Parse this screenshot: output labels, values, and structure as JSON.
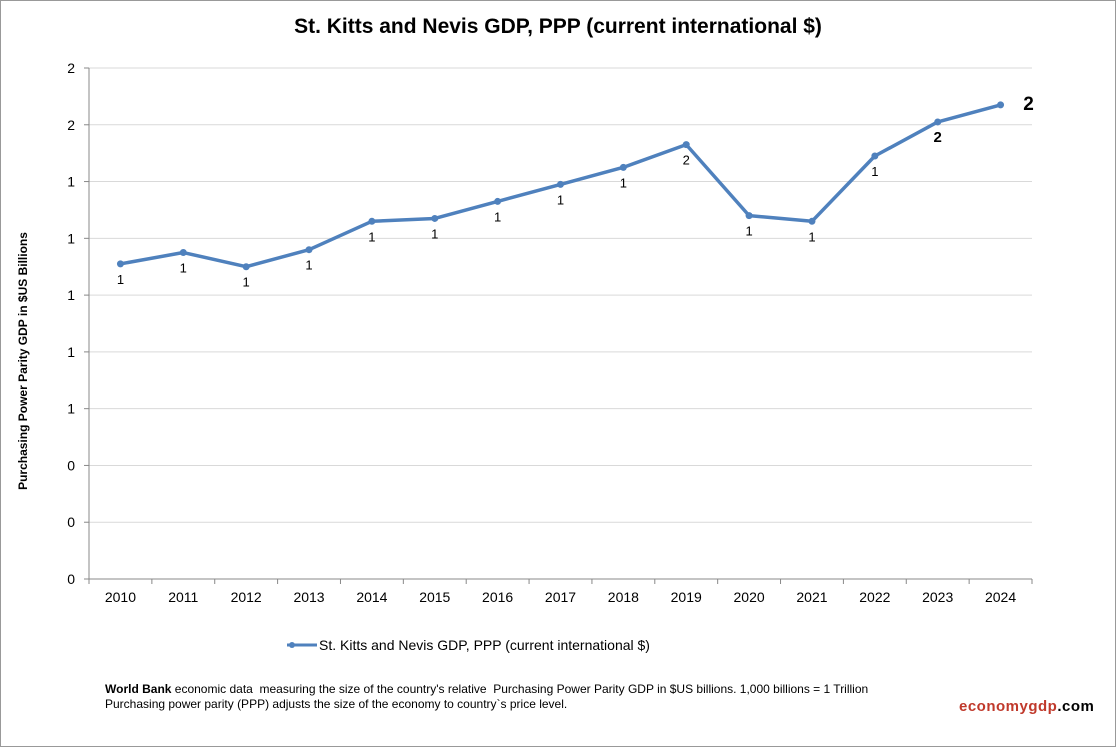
{
  "chart_data": {
    "type": "line",
    "title": "St. Kitts and Nevis GDP, PPP (current international $)",
    "ylabel": "Purchasing Power Parity GDP in $US Billions",
    "xlabel": "",
    "categories": [
      "2010",
      "2011",
      "2012",
      "2013",
      "2014",
      "2015",
      "2016",
      "2017",
      "2018",
      "2019",
      "2020",
      "2021",
      "2022",
      "2023",
      "2024"
    ],
    "series": [
      {
        "name": "St. Kitts and Nevis GDP, PPP (current international $)",
        "values": [
          1.11,
          1.15,
          1.1,
          1.16,
          1.26,
          1.27,
          1.33,
          1.39,
          1.45,
          1.53,
          1.28,
          1.26,
          1.49,
          1.61,
          1.67
        ],
        "data_labels": [
          "1",
          "1",
          "1",
          "1",
          "1",
          "1",
          "1",
          "1",
          "1",
          "2",
          "1",
          "1",
          "1",
          "2",
          "2"
        ]
      }
    ],
    "ylim": [
      0,
      1.8
    ],
    "yticks": [
      0,
      0.2,
      0.4,
      0.6,
      0.8,
      1.0,
      1.2,
      1.4,
      1.6,
      1.8
    ],
    "ytick_labels": [
      "0",
      "0",
      "0",
      "1",
      "1",
      "1",
      "1",
      "1",
      "2",
      "2"
    ],
    "grid": true,
    "legend_position": "bottom",
    "color": "#4f81bd"
  },
  "footer": {
    "source_bold": "World Bank",
    "line1": " economic data  measuring the size of the country's relative  Purchasing Power Parity GDP in $US billions. 1,000 billions = 1 Trillion",
    "line2": "Purchasing power parity (PPP) adjusts the size of the economy to country`s price level."
  },
  "brand": {
    "part1": "economy",
    "part2": "gdp",
    "part3": ".com",
    "color1": "#c0392b",
    "color2": "#000000"
  }
}
